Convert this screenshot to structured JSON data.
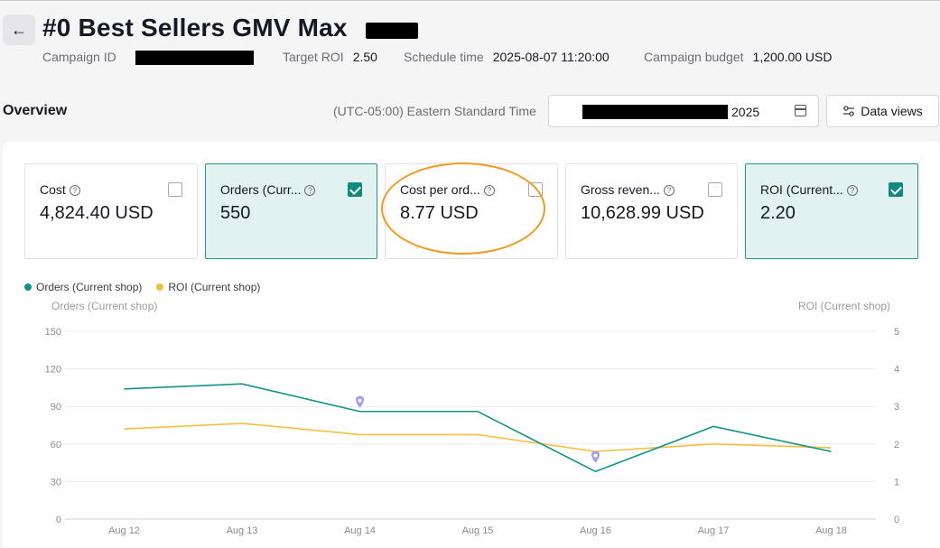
{
  "header": {
    "back_icon": "arrow-left-icon",
    "title": "#0 Best Sellers GMV Max",
    "meta": [
      {
        "label": "Campaign ID",
        "value": ""
      },
      {
        "label": "Target ROI",
        "value": "2.50"
      },
      {
        "label": "Schedule time",
        "value": "2025-08-07 11:20:00"
      },
      {
        "label": "Campaign budget",
        "value": "1,200.00 USD"
      }
    ]
  },
  "toolbar": {
    "section_title": "Overview",
    "timezone": "(UTC-05:00) Eastern Standard Time",
    "date_range_suffix": "2025",
    "data_views_label": "Data views"
  },
  "metrics": [
    {
      "label": "Cost",
      "value": "4,824.40 USD",
      "checked": false
    },
    {
      "label": "Orders (Curr...",
      "value": "550",
      "checked": true
    },
    {
      "label": "Cost per ord...",
      "value": "8.77 USD",
      "checked": false
    },
    {
      "label": "Gross reven...",
      "value": "10,628.99 USD",
      "checked": false
    },
    {
      "label": "ROI (Current...",
      "value": "2.20",
      "checked": true
    }
  ],
  "colors": {
    "orders": "#0f9488",
    "roi": "#f5bf3f",
    "annotation": "#ef9a1e",
    "marker": "#a79bf5"
  },
  "chart_data": {
    "type": "line",
    "x": [
      "Aug 12",
      "Aug 13",
      "Aug 14",
      "Aug 15",
      "Aug 16",
      "Aug 17",
      "Aug 18"
    ],
    "series": [
      {
        "name": "Orders (Current shop)",
        "axis": "left",
        "values": [
          104,
          108,
          86,
          86,
          38,
          74,
          54
        ]
      },
      {
        "name": "ROI (Current shop)",
        "axis": "right",
        "values": [
          2.4,
          2.55,
          2.25,
          2.25,
          1.8,
          2.0,
          1.9
        ]
      }
    ],
    "ylabel_left": "Orders (Current shop)",
    "ylabel_right": "ROI (Current shop)",
    "ylim_left": [
      0,
      150
    ],
    "ylim_right": [
      0,
      5
    ],
    "yticks_left": [
      "0",
      "30",
      "60",
      "90",
      "120",
      "150"
    ],
    "yticks_right": [
      "0",
      "1",
      "2",
      "3",
      "4",
      "5"
    ],
    "markers": [
      {
        "x": "Aug 14",
        "value": 94
      },
      {
        "x": "Aug 16",
        "value": 50
      }
    ],
    "grid": true,
    "legend": "top-left"
  }
}
